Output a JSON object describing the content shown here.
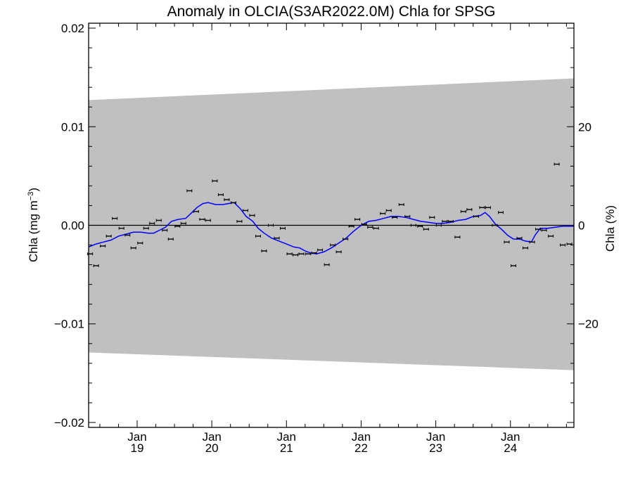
{
  "chart_data": {
    "type": "scatter",
    "title": "Anomaly in OLCIA(S3AR2022.0M) Chla for SPSG",
    "ylabel_left": {
      "main": "Chla (mg m",
      "sup": "−3",
      "close": ")"
    },
    "ylabel_right": "Chla (%)",
    "xlim": [
      2018.35,
      2024.85
    ],
    "ylim": [
      -0.0205,
      0.0205
    ],
    "y2lim": [
      -41.0,
      41.0
    ],
    "x_ticks": [
      {
        "x": 2019.0,
        "month": "Jan",
        "year": "19"
      },
      {
        "x": 2020.0,
        "month": "Jan",
        "year": "20"
      },
      {
        "x": 2021.0,
        "month": "Jan",
        "year": "21"
      },
      {
        "x": 2022.0,
        "month": "Jan",
        "year": "22"
      },
      {
        "x": 2023.0,
        "month": "Jan",
        "year": "23"
      },
      {
        "x": 2024.0,
        "month": "Jan",
        "year": "24"
      }
    ],
    "y_ticks": [
      {
        "v": 0.02,
        "label": "0.02"
      },
      {
        "v": 0.01,
        "label": "0.01"
      },
      {
        "v": 0.0,
        "label": "0.00"
      },
      {
        "v": -0.01,
        "label": "−0.01"
      },
      {
        "v": -0.02,
        "label": "−0.02"
      }
    ],
    "y2_ticks": [
      {
        "v": 20,
        "label": "20"
      },
      {
        "v": 0,
        "label": "0"
      },
      {
        "v": -20,
        "label": "−20"
      }
    ],
    "band": {
      "color": "#c0c0c0",
      "upper": [
        [
          2018.35,
          0.0127
        ],
        [
          2024.85,
          0.0149
        ]
      ],
      "lower": [
        [
          2018.35,
          -0.0129
        ],
        [
          2024.85,
          -0.0147
        ]
      ]
    },
    "zero_line": true,
    "colors": {
      "points": "#000000",
      "smooth": "#0000ff",
      "band": "#c0c0c0",
      "axes": "#000000"
    },
    "points": [
      {
        "x": 2018.37,
        "y": -0.0029
      },
      {
        "x": 2018.45,
        "y": -0.0041
      },
      {
        "x": 2018.54,
        "y": -0.0021
      },
      {
        "x": 2018.62,
        "y": -0.0011
      },
      {
        "x": 2018.7,
        "y": 0.0007
      },
      {
        "x": 2018.79,
        "y": -0.0003
      },
      {
        "x": 2018.87,
        "y": -0.001
      },
      {
        "x": 2018.95,
        "y": -0.0023
      },
      {
        "x": 2019.04,
        "y": -0.0018
      },
      {
        "x": 2019.12,
        "y": -0.0003
      },
      {
        "x": 2019.2,
        "y": 0.0002
      },
      {
        "x": 2019.29,
        "y": 0.0005
      },
      {
        "x": 2019.37,
        "y": -0.0005
      },
      {
        "x": 2019.45,
        "y": -0.0014
      },
      {
        "x": 2019.54,
        "y": -0.0001
      },
      {
        "x": 2019.62,
        "y": 0.0002
      },
      {
        "x": 2019.7,
        "y": 0.0035
      },
      {
        "x": 2019.79,
        "y": 0.0014
      },
      {
        "x": 2019.87,
        "y": 0.0006
      },
      {
        "x": 2019.95,
        "y": 0.0005
      },
      {
        "x": 2020.04,
        "y": 0.0045
      },
      {
        "x": 2020.12,
        "y": 0.0031
      },
      {
        "x": 2020.2,
        "y": 0.0026
      },
      {
        "x": 2020.29,
        "y": 0.0023
      },
      {
        "x": 2020.37,
        "y": 0.0004
      },
      {
        "x": 2020.45,
        "y": 0.0015
      },
      {
        "x": 2020.54,
        "y": 0.001
      },
      {
        "x": 2020.62,
        "y": -0.0011
      },
      {
        "x": 2020.7,
        "y": -0.0026
      },
      {
        "x": 2020.79,
        "y": 0.0
      },
      {
        "x": 2020.87,
        "y": -0.0013
      },
      {
        "x": 2020.95,
        "y": -0.0003
      },
      {
        "x": 2021.04,
        "y": -0.0029
      },
      {
        "x": 2021.12,
        "y": -0.003
      },
      {
        "x": 2021.2,
        "y": -0.0029
      },
      {
        "x": 2021.29,
        "y": -0.0029
      },
      {
        "x": 2021.37,
        "y": -0.0028
      },
      {
        "x": 2021.45,
        "y": -0.0025
      },
      {
        "x": 2021.54,
        "y": -0.004
      },
      {
        "x": 2021.62,
        "y": -0.002
      },
      {
        "x": 2021.7,
        "y": -0.0027
      },
      {
        "x": 2021.79,
        "y": -0.0014
      },
      {
        "x": 2021.87,
        "y": -0.0001
      },
      {
        "x": 2021.95,
        "y": 0.0006
      },
      {
        "x": 2022.04,
        "y": 0.0001
      },
      {
        "x": 2022.12,
        "y": -0.0002
      },
      {
        "x": 2022.2,
        "y": -0.0003
      },
      {
        "x": 2022.29,
        "y": 0.0012
      },
      {
        "x": 2022.37,
        "y": 0.0015
      },
      {
        "x": 2022.45,
        "y": 0.0008
      },
      {
        "x": 2022.54,
        "y": 0.0021
      },
      {
        "x": 2022.62,
        "y": 0.0009
      },
      {
        "x": 2022.7,
        "y": 0.0
      },
      {
        "x": 2022.79,
        "y": -0.0001
      },
      {
        "x": 2022.87,
        "y": -0.0004
      },
      {
        "x": 2022.95,
        "y": 0.0008
      },
      {
        "x": 2023.04,
        "y": 0.0
      },
      {
        "x": 2023.12,
        "y": 0.0004
      },
      {
        "x": 2023.2,
        "y": 0.0004
      },
      {
        "x": 2023.29,
        "y": -0.0012
      },
      {
        "x": 2023.37,
        "y": 0.0014
      },
      {
        "x": 2023.45,
        "y": 0.0016
      },
      {
        "x": 2023.54,
        "y": 0.0009
      },
      {
        "x": 2023.62,
        "y": 0.0018
      },
      {
        "x": 2023.7,
        "y": 0.0018
      },
      {
        "x": 2023.79,
        "y": 0.0
      },
      {
        "x": 2023.87,
        "y": 0.0013
      },
      {
        "x": 2023.95,
        "y": -0.0017
      },
      {
        "x": 2024.04,
        "y": -0.0041
      },
      {
        "x": 2024.12,
        "y": -0.0013
      },
      {
        "x": 2024.2,
        "y": -0.0023
      },
      {
        "x": 2024.29,
        "y": -0.0017
      },
      {
        "x": 2024.37,
        "y": -0.0004
      },
      {
        "x": 2024.45,
        "y": -0.0005
      },
      {
        "x": 2024.54,
        "y": -0.0011
      },
      {
        "x": 2024.62,
        "y": 0.0062
      },
      {
        "x": 2024.7,
        "y": -0.002
      },
      {
        "x": 2024.79,
        "y": -0.0019
      }
    ],
    "smooth": [
      [
        2018.35,
        -0.0022
      ],
      [
        2018.45,
        -0.0019
      ],
      [
        2018.55,
        -0.0017
      ],
      [
        2018.65,
        -0.0015
      ],
      [
        2018.75,
        -0.0011
      ],
      [
        2018.85,
        -0.0009
      ],
      [
        2018.95,
        -0.0007
      ],
      [
        2019.05,
        -0.0007
      ],
      [
        2019.15,
        -0.0008
      ],
      [
        2019.22,
        -0.0008
      ],
      [
        2019.3,
        -0.0005
      ],
      [
        2019.38,
        -0.0002
      ],
      [
        2019.46,
        0.0004
      ],
      [
        2019.55,
        0.0006
      ],
      [
        2019.65,
        0.0007
      ],
      [
        2019.72,
        0.0012
      ],
      [
        2019.8,
        0.0018
      ],
      [
        2019.88,
        0.0022
      ],
      [
        2019.95,
        0.0023
      ],
      [
        2020.05,
        0.0021
      ],
      [
        2020.15,
        0.0021
      ],
      [
        2020.22,
        0.0022
      ],
      [
        2020.3,
        0.0023
      ],
      [
        2020.38,
        0.0017
      ],
      [
        2020.46,
        0.0009
      ],
      [
        2020.55,
        0.0004
      ],
      [
        2020.62,
        -0.0003
      ],
      [
        2020.7,
        -0.0008
      ],
      [
        2020.8,
        -0.0013
      ],
      [
        2020.9,
        -0.0016
      ],
      [
        2021.0,
        -0.0019
      ],
      [
        2021.1,
        -0.0022
      ],
      [
        2021.18,
        -0.0023
      ],
      [
        2021.25,
        -0.0026
      ],
      [
        2021.32,
        -0.0028
      ],
      [
        2021.4,
        -0.0029
      ],
      [
        2021.5,
        -0.0027
      ],
      [
        2021.6,
        -0.0023
      ],
      [
        2021.7,
        -0.0018
      ],
      [
        2021.8,
        -0.0013
      ],
      [
        2021.9,
        -0.0006
      ],
      [
        2022.0,
        0.0
      ],
      [
        2022.1,
        0.0004
      ],
      [
        2022.2,
        0.0005
      ],
      [
        2022.3,
        0.0007
      ],
      [
        2022.4,
        0.0009
      ],
      [
        2022.5,
        0.0009
      ],
      [
        2022.6,
        0.0008
      ],
      [
        2022.7,
        0.0006
      ],
      [
        2022.8,
        0.0004
      ],
      [
        2022.9,
        0.0003
      ],
      [
        2023.0,
        0.0002
      ],
      [
        2023.1,
        0.0002
      ],
      [
        2023.2,
        0.0003
      ],
      [
        2023.3,
        0.0005
      ],
      [
        2023.4,
        0.0006
      ],
      [
        2023.5,
        0.0009
      ],
      [
        2023.6,
        0.001
      ],
      [
        2023.66,
        0.0013
      ],
      [
        2023.72,
        0.0009
      ],
      [
        2023.8,
        0.0001
      ],
      [
        2023.88,
        -0.0004
      ],
      [
        2023.96,
        -0.001
      ],
      [
        2024.04,
        -0.0014
      ],
      [
        2024.12,
        -0.0014
      ],
      [
        2024.2,
        -0.0016
      ],
      [
        2024.28,
        -0.0017
      ],
      [
        2024.33,
        -0.001
      ],
      [
        2024.4,
        -0.0003
      ],
      [
        2024.5,
        -0.0003
      ],
      [
        2024.6,
        -0.0002
      ],
      [
        2024.7,
        -0.0001
      ],
      [
        2024.8,
        -0.0001
      ],
      [
        2024.85,
        -0.0001
      ]
    ]
  }
}
